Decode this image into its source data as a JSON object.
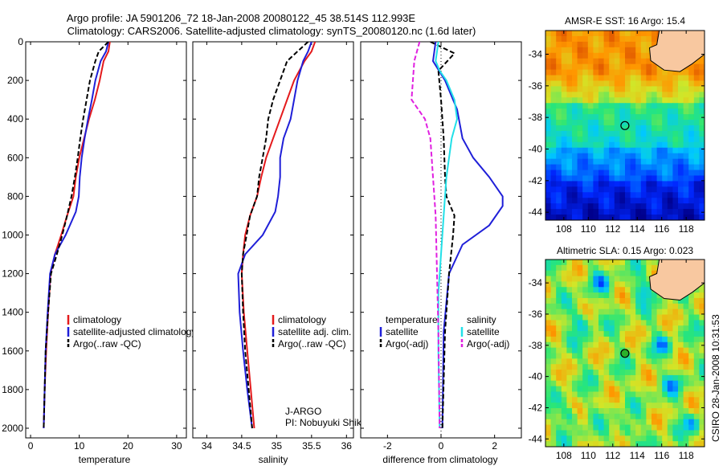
{
  "title_line1": "Argo profile: JA 5901206_72 18-Jan-2008 20080122_45 38.514S 112.993E",
  "title_line2": "Climatology: CARS2006. Satellite-adjusted climatology: synTS_20080120.nc (1.6d later)",
  "side_label": "CSIRO 28-Jan-2008 10:31:53",
  "colors": {
    "red": "#e41a1c",
    "blue": "#1f1fd8",
    "black": "#000000",
    "cyan": "#22e0e8",
    "magenta": "#e020e0",
    "land": "#f8c8a0"
  },
  "chart_data": [
    {
      "type": "line",
      "xlabel": "temperature",
      "xlim": [
        -1,
        32
      ],
      "ylim": [
        2050,
        0
      ],
      "xticks": [
        "0",
        "10",
        "20",
        "30"
      ],
      "yticks": [
        "0",
        "200",
        "400",
        "600",
        "800",
        "1000",
        "1200",
        "1400",
        "1600",
        "1800",
        "2000"
      ],
      "legend": [
        "climatology",
        "satellite-adjusted climatology",
        "Argo(..raw -QC)"
      ],
      "series": [
        {
          "name": "climatology",
          "color": "red",
          "dash": "",
          "values": [
            [
              16.3,
              0
            ],
            [
              16,
              50
            ],
            [
              15,
              100
            ],
            [
              14.2,
              200
            ],
            [
              13.2,
              300
            ],
            [
              12,
              400
            ],
            [
              11,
              500
            ],
            [
              10,
              600
            ],
            [
              9.3,
              700
            ],
            [
              8.8,
              800
            ],
            [
              7.5,
              900
            ],
            [
              6.3,
              1000
            ],
            [
              5,
              1100
            ],
            [
              4.1,
              1200
            ],
            [
              3.6,
              1400
            ],
            [
              3.2,
              1600
            ],
            [
              2.9,
              1800
            ],
            [
              2.7,
              2000
            ]
          ]
        },
        {
          "name": "satellite-adjusted climatology",
          "color": "blue",
          "dash": "",
          "values": [
            [
              16,
              0
            ],
            [
              15.5,
              50
            ],
            [
              14.4,
              100
            ],
            [
              13.3,
              200
            ],
            [
              12.6,
              300
            ],
            [
              11.8,
              400
            ],
            [
              11.1,
              500
            ],
            [
              10.5,
              600
            ],
            [
              10.1,
              700
            ],
            [
              9.9,
              800
            ],
            [
              9.3,
              880
            ],
            [
              7.2,
              1000
            ],
            [
              5,
              1100
            ],
            [
              4,
              1200
            ],
            [
              3.5,
              1400
            ],
            [
              3.1,
              1600
            ],
            [
              2.9,
              1800
            ],
            [
              2.7,
              2000
            ]
          ]
        },
        {
          "name": "Argo(..raw -QC)",
          "color": "black",
          "dash": "6,3",
          "values": [
            [
              16,
              0
            ],
            [
              14,
              50
            ],
            [
              13.3,
              100
            ],
            [
              12.2,
              200
            ],
            [
              11.5,
              300
            ],
            [
              10.8,
              400
            ],
            [
              10.2,
              500
            ],
            [
              9.7,
              600
            ],
            [
              9.1,
              700
            ],
            [
              8.4,
              800
            ],
            [
              7.5,
              900
            ],
            [
              6.5,
              1000
            ],
            [
              5.4,
              1100
            ],
            [
              4.2,
              1200
            ],
            [
              3.6,
              1400
            ],
            [
              3.1,
              1600
            ],
            [
              2.9,
              1800
            ],
            [
              2.7,
              2000
            ]
          ]
        }
      ]
    },
    {
      "type": "line",
      "xlabel": "salinity",
      "xlim": [
        33.8,
        36.1
      ],
      "ylim": [
        2050,
        0
      ],
      "xticks": [
        "34",
        "34.5",
        "35",
        "35.5",
        "36"
      ],
      "legend": [
        "climatology",
        "satellite adj. clim.",
        "Argo(..raw -QC)"
      ],
      "annotation": [
        "J-ARGO",
        "PI: Nobuyuki Shikama"
      ],
      "series": [
        {
          "name": "climatology",
          "color": "red",
          "dash": "",
          "values": [
            [
              35.55,
              0
            ],
            [
              35.5,
              50
            ],
            [
              35.4,
              100
            ],
            [
              35.25,
              200
            ],
            [
              35.15,
              300
            ],
            [
              35.05,
              400
            ],
            [
              34.95,
              500
            ],
            [
              34.85,
              600
            ],
            [
              34.78,
              700
            ],
            [
              34.72,
              800
            ],
            [
              34.62,
              900
            ],
            [
              34.55,
              1000
            ],
            [
              34.52,
              1100
            ],
            [
              34.5,
              1200
            ],
            [
              34.53,
              1400
            ],
            [
              34.58,
              1600
            ],
            [
              34.63,
              1800
            ],
            [
              34.68,
              2000
            ]
          ]
        },
        {
          "name": "satellite adj. clim.",
          "color": "blue",
          "dash": "",
          "values": [
            [
              35.5,
              0
            ],
            [
              35.45,
              50
            ],
            [
              35.38,
              100
            ],
            [
              35.3,
              200
            ],
            [
              35.25,
              300
            ],
            [
              35.2,
              400
            ],
            [
              35.1,
              500
            ],
            [
              35.05,
              600
            ],
            [
              35.05,
              700
            ],
            [
              35.02,
              800
            ],
            [
              34.98,
              880
            ],
            [
              34.8,
              1000
            ],
            [
              34.55,
              1100
            ],
            [
              34.45,
              1200
            ],
            [
              34.47,
              1400
            ],
            [
              34.52,
              1600
            ],
            [
              34.58,
              1800
            ],
            [
              34.65,
              2000
            ]
          ]
        },
        {
          "name": "Argo(..raw -QC)",
          "color": "black",
          "dash": "6,3",
          "values": [
            [
              35.45,
              0
            ],
            [
              35.3,
              50
            ],
            [
              35.15,
              100
            ],
            [
              35.05,
              200
            ],
            [
              34.95,
              300
            ],
            [
              34.88,
              400
            ],
            [
              34.85,
              500
            ],
            [
              34.8,
              600
            ],
            [
              34.75,
              700
            ],
            [
              34.72,
              800
            ],
            [
              34.62,
              900
            ],
            [
              34.57,
              1000
            ],
            [
              34.52,
              1100
            ],
            [
              34.5,
              1200
            ],
            [
              34.52,
              1400
            ],
            [
              34.55,
              1600
            ],
            [
              34.6,
              1800
            ],
            [
              34.65,
              2000
            ]
          ]
        }
      ]
    },
    {
      "type": "line",
      "xlabel": "difference from climatology",
      "xlim": [
        -3,
        3
      ],
      "ylim": [
        2050,
        0
      ],
      "xticks": [
        "-2",
        "0",
        "2"
      ],
      "legend_titles": [
        "temperature",
        "salinity"
      ],
      "legend": [
        "satellite",
        "Argo(-adj)",
        "satellite",
        "Argo(-adj)"
      ],
      "series": [
        {
          "name": "satellite",
          "color": "blue",
          "dash": "",
          "values": [
            [
              -0.2,
              0
            ],
            [
              -0.3,
              100
            ],
            [
              0.15,
              200
            ],
            [
              0.6,
              350
            ],
            [
              0.8,
              500
            ],
            [
              1.2,
              600
            ],
            [
              1.8,
              700
            ],
            [
              2.3,
              800
            ],
            [
              2.3,
              850
            ],
            [
              1.8,
              950
            ],
            [
              0.8,
              1050
            ],
            [
              0.3,
              1200
            ],
            [
              0.1,
              1500
            ],
            [
              0.05,
              2000
            ]
          ]
        },
        {
          "name": "Argo(-adj)",
          "color": "black",
          "dash": "6,3",
          "values": [
            [
              -0.4,
              0
            ],
            [
              0.5,
              60
            ],
            [
              -0.1,
              150
            ],
            [
              0,
              300
            ],
            [
              0.1,
              500
            ],
            [
              0.15,
              700
            ],
            [
              0.2,
              800
            ],
            [
              0.5,
              900
            ],
            [
              0.45,
              1000
            ],
            [
              0.3,
              1200
            ],
            [
              0.15,
              1500
            ],
            [
              0.05,
              2000
            ]
          ]
        },
        {
          "name": "satellite",
          "color": "cyan",
          "dash": "",
          "values": [
            [
              -0.1,
              0
            ],
            [
              -0.2,
              100
            ],
            [
              -0.05,
              150
            ],
            [
              0.2,
              200
            ],
            [
              0.5,
              300
            ],
            [
              0.6,
              400
            ],
            [
              0.4,
              500
            ],
            [
              0.2,
              700
            ],
            [
              0.1,
              900
            ],
            [
              0,
              1100
            ],
            [
              -0.1,
              1300
            ],
            [
              -0.1,
              1600
            ],
            [
              -0.05,
              2000
            ]
          ]
        },
        {
          "name": "Argo(-adj)",
          "color": "magenta",
          "dash": "6,3",
          "values": [
            [
              -0.8,
              0
            ],
            [
              -1,
              100
            ],
            [
              -1.1,
              300
            ],
            [
              -0.6,
              400
            ],
            [
              -0.4,
              500
            ],
            [
              -0.3,
              700
            ],
            [
              -0.2,
              900
            ],
            [
              -0.15,
              1200
            ],
            [
              -0.1,
              1500
            ],
            [
              -0.05,
              2000
            ]
          ]
        }
      ]
    },
    {
      "type": "heatmap",
      "title": "AMSR-E SST: 16 Argo: 15.4",
      "xlim": [
        106.5,
        119.5
      ],
      "ylim": [
        -44.5,
        -32.5
      ],
      "xticks": [
        "108",
        "110",
        "112",
        "114",
        "116",
        "118"
      ],
      "yticks": [
        "-34",
        "-36",
        "-38",
        "-40",
        "-42",
        "-44"
      ],
      "marker": [
        112.993,
        -38.514
      ]
    },
    {
      "type": "heatmap",
      "title": "Altimetric SLA: 0.15 Argo: 0.023",
      "xlim": [
        106.5,
        119.5
      ],
      "ylim": [
        -44.5,
        -32.5
      ],
      "xticks": [
        "108",
        "110",
        "112",
        "114",
        "116",
        "118"
      ],
      "yticks": [
        "-34",
        "-36",
        "-38",
        "-40",
        "-42",
        "-44"
      ],
      "marker": [
        112.993,
        -38.514
      ]
    }
  ]
}
